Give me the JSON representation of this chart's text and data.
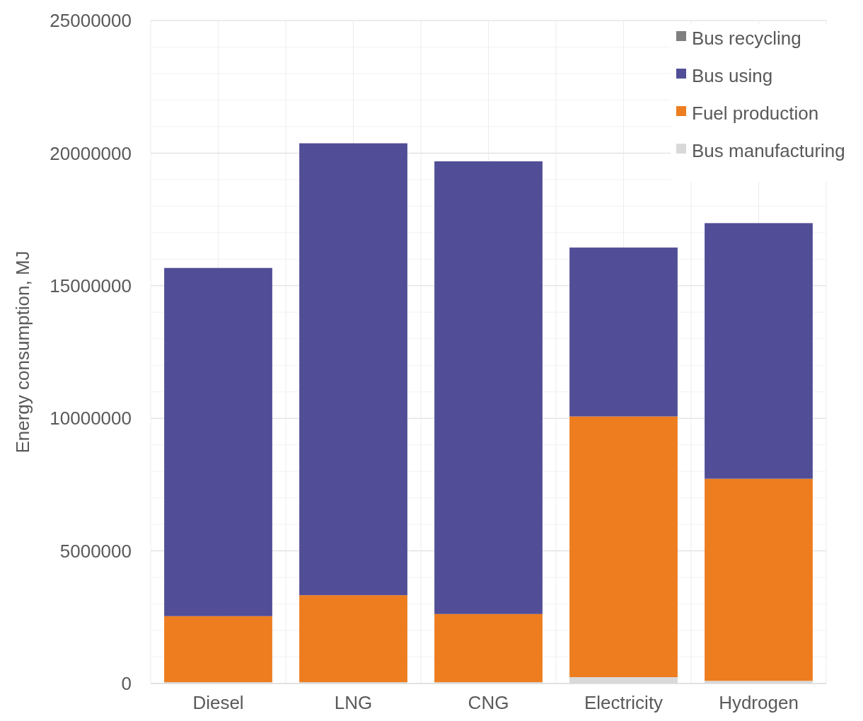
{
  "chart_data": {
    "type": "bar",
    "stacked": true,
    "ylabel": "Energy consumption, MJ",
    "categories": [
      "Diesel",
      "LNG",
      "CNG",
      "Electricity",
      "Hydrogen"
    ],
    "series": [
      {
        "name": "Bus manufacturing",
        "color": "#d9d9d9",
        "values": [
          50000,
          50000,
          50000,
          240000,
          100000
        ]
      },
      {
        "name": "Fuel production",
        "color": "#ed7d1f",
        "values": [
          2490000,
          3280000,
          2570000,
          9830000,
          7620000
        ]
      },
      {
        "name": "Bus using",
        "color": "#514e97",
        "values": [
          13130000,
          17040000,
          17070000,
          6370000,
          9640000
        ]
      },
      {
        "name": "Bus recycling",
        "color": "#7f7f7f",
        "values": [
          0,
          0,
          0,
          0,
          0
        ]
      }
    ],
    "ylim": [
      0,
      25000000
    ],
    "yticks": [
      0,
      {
        "value": 1000000,
        "label": null
      },
      {
        "value": 2000000,
        "label": null
      },
      {
        "value": 3000000,
        "label": null
      },
      {
        "value": 4000000,
        "label": null
      },
      5000000,
      {
        "value": 6000000,
        "label": null
      },
      {
        "value": 7000000,
        "label": null
      },
      {
        "value": 8000000,
        "label": null
      },
      {
        "value": 9000000,
        "label": null
      },
      10000000,
      {
        "value": 11000000,
        "label": null
      },
      {
        "value": 12000000,
        "label": null
      },
      {
        "value": 13000000,
        "label": null
      },
      {
        "value": 14000000,
        "label": null
      },
      15000000,
      {
        "value": 16000000,
        "label": null
      },
      {
        "value": 17000000,
        "label": null
      },
      {
        "value": 18000000,
        "label": null
      },
      {
        "value": 19000000,
        "label": null
      },
      20000000,
      {
        "value": 21000000,
        "label": null
      },
      {
        "value": 22000000,
        "label": null
      },
      {
        "value": 23000000,
        "label": null
      },
      {
        "value": 24000000,
        "label": null
      },
      25000000
    ],
    "grid": true,
    "legend": "top right"
  }
}
